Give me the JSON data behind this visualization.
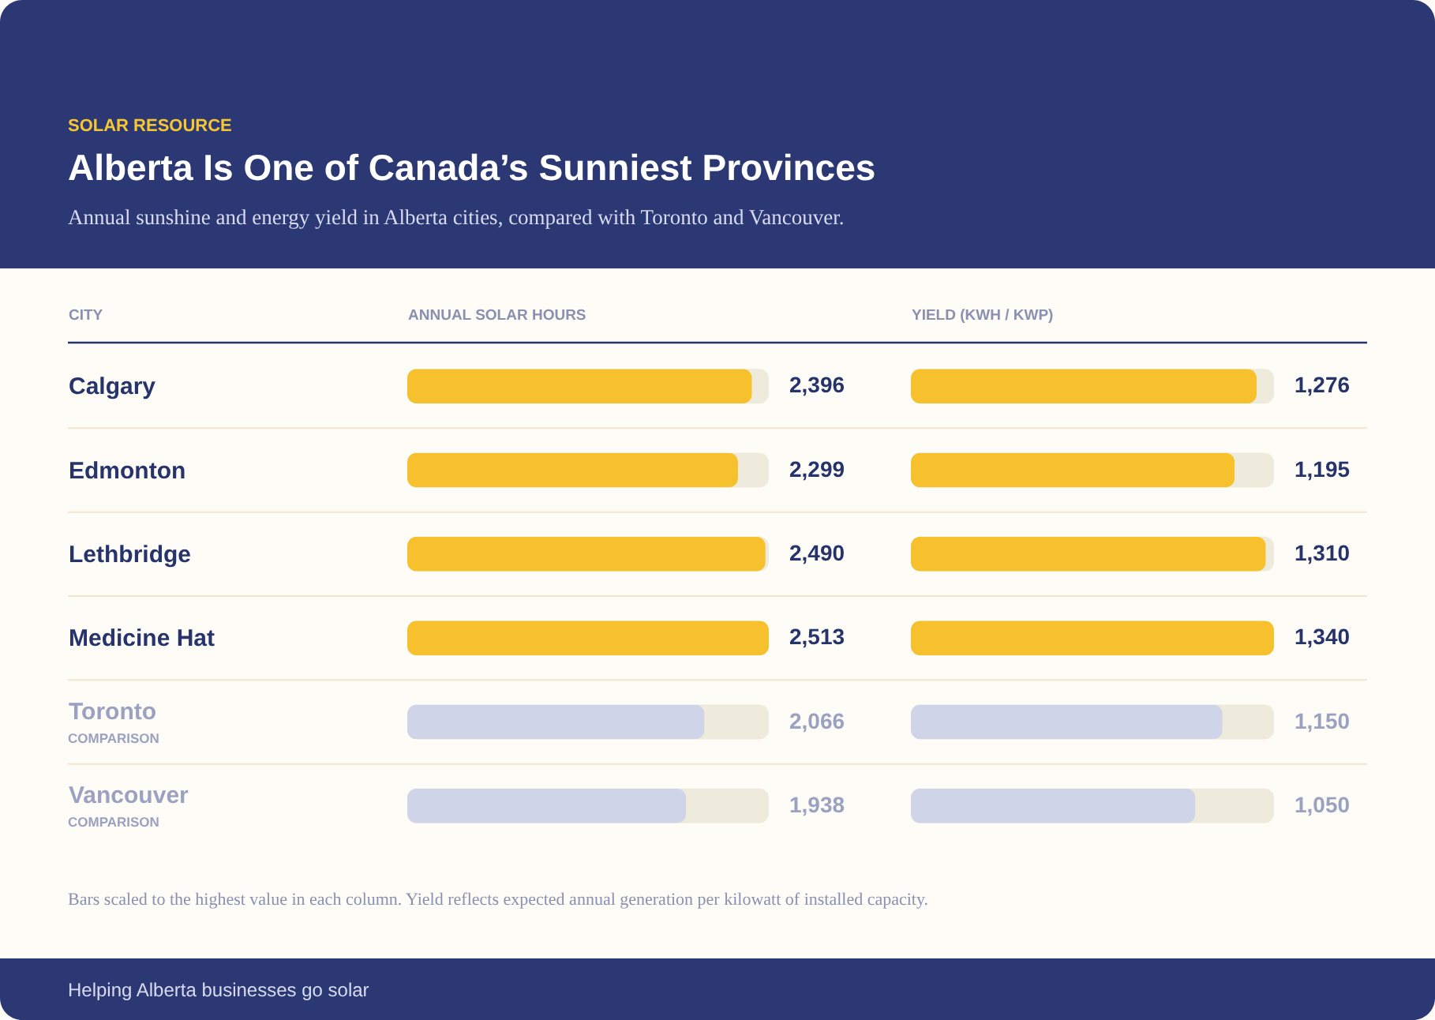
{
  "chart_data": [
    {
      "type": "bar",
      "orientation": "horizontal",
      "title": "Alberta Is One of Canada’s Sunniest Provinces",
      "subtitle": "Annual sunshine and energy yield in Alberta cities, compared with Toronto and Vancouver.",
      "ylabel": "CITY",
      "xlabel": "ANNUAL SOLAR HOURS",
      "categories": [
        "Calgary",
        "Edmonton",
        "Lethbridge",
        "Medicine Hat",
        "Toronto",
        "Vancouver"
      ],
      "values": [
        2396,
        2299,
        2490,
        2513,
        2066,
        1938
      ],
      "value_labels": [
        "2,396",
        "2,299",
        "2,490",
        "2,513",
        "2,066",
        "1,938"
      ],
      "colors": [
        "#f6c12c",
        "#f6c12c",
        "#f6c12c",
        "#f6c12c",
        "#cfd4e8",
        "#cfd4e8"
      ],
      "grid": "y",
      "tick_labels": "y",
      "annotations": [
        "SOLAR RESOURCE",
        "COMPARISON",
        "COMPARISON",
        "Bars scaled to the highest value in each column. Yield reflects expected annual generation per kilowatt of installed capacity.",
        "Helping Alberta businesses go solar"
      ]
    },
    {
      "type": "bar",
      "orientation": "horizontal",
      "xlabel": "YIELD (KWH / KWP)",
      "categories": [
        "Calgary",
        "Edmonton",
        "Lethbridge",
        "Medicine Hat",
        "Toronto",
        "Vancouver"
      ],
      "values": [
        1276,
        1195,
        1310,
        1340,
        1150,
        1050
      ],
      "value_labels": [
        "1,276",
        "1,195",
        "1,310",
        "1,340",
        "1,150",
        "1,050"
      ],
      "colors": [
        "#f6c12c",
        "#f6c12c",
        "#f6c12c",
        "#f6c12c",
        "#cfd4e8",
        "#cfd4e8"
      ],
      "grid": "y",
      "tick_labels": false
    }
  ]
}
